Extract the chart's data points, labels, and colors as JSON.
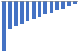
{
  "values": [
    -290,
    -160,
    -145,
    -130,
    -115,
    -105,
    -90,
    -75,
    -65,
    -55,
    -45,
    -30,
    -15
  ],
  "bar_color": "#4472c4",
  "background_color": "#ffffff",
  "grid_color": "#cccccc",
  "xlim": [
    -0.5,
    12.5
  ],
  "ylim": [
    -310,
    0
  ],
  "bar_width": 0.65
}
